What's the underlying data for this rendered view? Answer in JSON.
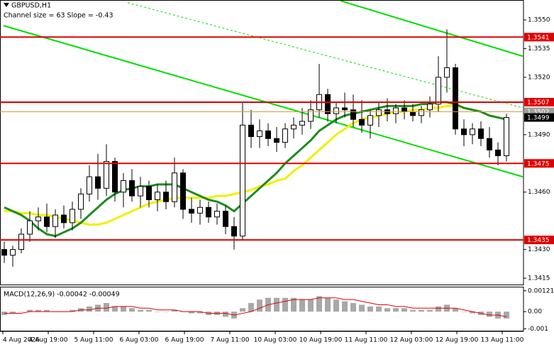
{
  "chart_data": {
    "type": "candlestick",
    "title": "GBPUSD,H1",
    "subtitle": "Channel size = 63 Slope = -0.43",
    "xlim": [
      0,
      61.5
    ],
    "xticks": [
      {
        "value": 0.33,
        "label": "4 Aug 2026"
      },
      {
        "value": 5.67,
        "label": "4 Aug 19:00"
      },
      {
        "value": 11,
        "label": "5 Aug 11:00"
      },
      {
        "value": 16.33,
        "label": "6 Aug 03:00"
      },
      {
        "value": 21.67,
        "label": "6 Aug 19:00"
      },
      {
        "value": 27,
        "label": "7 Aug 11:00"
      },
      {
        "value": 32.33,
        "label": "10 Aug 03:00"
      },
      {
        "value": 37.67,
        "label": "10 Aug 19:00"
      },
      {
        "value": 43,
        "label": "11 Aug 11:00"
      },
      {
        "value": 48.33,
        "label": "12 Aug 03:00"
      },
      {
        "value": 53.67,
        "label": "12 Aug 19:00"
      },
      {
        "value": 59,
        "label": "13 Aug 11:00"
      }
    ],
    "ylim": [
      1.34113,
      1.35604
    ],
    "yticks": [
      {
        "value": 1.355,
        "label": "1.3550"
      },
      1.3535,
      {
        "value": 1.352,
        "label": "1.3520"
      },
      {
        "value": 1.349,
        "label": "1.3490"
      },
      {
        "value": 1.346,
        "label": "1.3460"
      },
      {
        "value": 1.343,
        "label": "1.3430"
      },
      1.3415
    ],
    "bull_color": "#ffffff",
    "bear_color": "#000000",
    "ohlc": [
      [
        1.343,
        1.3434,
        1.3423,
        1.3427
      ],
      [
        1.3427,
        1.3432,
        1.3421,
        1.343
      ],
      [
        1.343,
        1.3441,
        1.3428,
        1.3438
      ],
      [
        1.3438,
        1.345,
        1.3434,
        1.3445
      ],
      [
        1.3445,
        1.3452,
        1.344,
        1.3447
      ],
      [
        1.3447,
        1.3454,
        1.3439,
        1.3442
      ],
      [
        1.3442,
        1.3451,
        1.3436,
        1.3448
      ],
      [
        1.3448,
        1.3453,
        1.3441,
        1.3444
      ],
      [
        1.3444,
        1.3455,
        1.344,
        1.3451
      ],
      [
        1.3451,
        1.3462,
        1.3446,
        1.3459
      ],
      [
        1.3459,
        1.3474,
        1.3455,
        1.3468
      ],
      [
        1.3468,
        1.348,
        1.3456,
        1.3462
      ],
      [
        1.3462,
        1.3485,
        1.3458,
        1.3476
      ],
      [
        1.3476,
        1.3478,
        1.3455,
        1.346
      ],
      [
        1.346,
        1.347,
        1.3452,
        1.3466
      ],
      [
        1.3466,
        1.3472,
        1.3455,
        1.3458
      ],
      [
        1.3458,
        1.3468,
        1.3452,
        1.3463
      ],
      [
        1.3463,
        1.3466,
        1.3452,
        1.3456
      ],
      [
        1.3456,
        1.3464,
        1.345,
        1.346
      ],
      [
        1.346,
        1.3466,
        1.3451,
        1.3455
      ],
      [
        1.3455,
        1.3478,
        1.3452,
        1.347
      ],
      [
        1.347,
        1.3472,
        1.3446,
        1.3451
      ],
      [
        1.3451,
        1.3457,
        1.3444,
        1.3449
      ],
      [
        1.3449,
        1.3456,
        1.3443,
        1.3452
      ],
      [
        1.3452,
        1.3455,
        1.3444,
        1.3447
      ],
      [
        1.3447,
        1.3454,
        1.3443,
        1.345
      ],
      [
        1.345,
        1.3453,
        1.3438,
        1.3442
      ],
      [
        1.3442,
        1.3447,
        1.343,
        1.3437
      ],
      [
        1.3437,
        1.3507,
        1.3435,
        1.3495
      ],
      [
        1.3495,
        1.3503,
        1.3483,
        1.3489
      ],
      [
        1.3489,
        1.3498,
        1.3483,
        1.3492
      ],
      [
        1.3492,
        1.3496,
        1.3484,
        1.3488
      ],
      [
        1.3488,
        1.3494,
        1.3481,
        1.3486
      ],
      [
        1.3486,
        1.3496,
        1.3483,
        1.3493
      ],
      [
        1.3493,
        1.3499,
        1.3488,
        1.3495
      ],
      [
        1.3495,
        1.3504,
        1.349,
        1.3497
      ],
      [
        1.3497,
        1.3508,
        1.3493,
        1.3503
      ],
      [
        1.3503,
        1.3527,
        1.3499,
        1.3511
      ],
      [
        1.3511,
        1.3514,
        1.3497,
        1.3501
      ],
      [
        1.3501,
        1.3507,
        1.3496,
        1.3504
      ],
      [
        1.3504,
        1.3512,
        1.3499,
        1.3503
      ],
      [
        1.3503,
        1.3511,
        1.3494,
        1.3498
      ],
      [
        1.3498,
        1.3508,
        1.3491,
        1.3495
      ],
      [
        1.3495,
        1.3503,
        1.3488,
        1.35
      ],
      [
        1.35,
        1.3507,
        1.3494,
        1.3503
      ],
      [
        1.3503,
        1.3509,
        1.3497,
        1.3501
      ],
      [
        1.3501,
        1.3506,
        1.3496,
        1.3504
      ],
      [
        1.3504,
        1.3508,
        1.3498,
        1.3502
      ],
      [
        1.3502,
        1.3506,
        1.3497,
        1.35
      ],
      [
        1.35,
        1.3505,
        1.3496,
        1.3503
      ],
      [
        1.3503,
        1.351,
        1.3499,
        1.3506
      ],
      [
        1.3506,
        1.3531,
        1.3502,
        1.352
      ],
      [
        1.352,
        1.3545,
        1.3512,
        1.3525
      ],
      [
        1.3525,
        1.3527,
        1.349,
        1.3493
      ],
      [
        1.3493,
        1.3498,
        1.3484,
        1.349
      ],
      [
        1.349,
        1.3496,
        1.3485,
        1.3493
      ],
      [
        1.3493,
        1.3497,
        1.3484,
        1.3488
      ],
      [
        1.3488,
        1.3494,
        1.3478,
        1.3482
      ],
      [
        1.3482,
        1.3486,
        1.3474,
        1.3479
      ],
      [
        1.3479,
        1.3501,
        1.3476,
        1.3499
      ]
    ],
    "moving_averages": [
      {
        "color": "#f0f000",
        "values": [
          1.345,
          1.345,
          1.3449,
          1.3449,
          1.3448,
          1.3448,
          1.3447,
          1.3446,
          1.3445,
          1.3444,
          1.3443,
          1.3443,
          1.3444,
          1.3446,
          1.3448,
          1.345,
          1.3452,
          1.3454,
          1.3455,
          1.3456,
          1.3457,
          1.3457,
          1.3457,
          1.3457,
          1.3457,
          1.3458,
          1.3458,
          1.3459,
          1.346,
          1.3461,
          1.3463,
          1.3464,
          1.3466,
          1.3467,
          1.3471,
          1.3474,
          1.3478,
          1.3482,
          1.3486,
          1.349,
          1.3493,
          1.3496,
          1.3498,
          1.3499,
          1.35,
          1.3501,
          1.3502,
          1.3502,
          1.3503,
          1.3503,
          1.3504,
          1.3504,
          1.3505,
          1.3505,
          1.3504,
          1.3503,
          1.3502,
          1.35,
          1.3499,
          1.3498
        ]
      },
      {
        "color": "#1e8c1e",
        "values": [
          1.3452,
          1.345,
          1.3448,
          1.3445,
          1.3441,
          1.3438,
          1.3437,
          1.3439,
          1.3441,
          1.3444,
          1.3448,
          1.3452,
          1.3456,
          1.3459,
          1.3461,
          1.3462,
          1.3463,
          1.3463,
          1.3464,
          1.3464,
          1.3464,
          1.3462,
          1.346,
          1.3458,
          1.3456,
          1.3455,
          1.3453,
          1.345,
          1.3454,
          1.3458,
          1.3462,
          1.3466,
          1.347,
          1.3475,
          1.3479,
          1.3483,
          1.3487,
          1.3492,
          1.3495,
          1.3498,
          1.35,
          1.3501,
          1.3502,
          1.3503,
          1.3504,
          1.3505,
          1.3505,
          1.3505,
          1.3505,
          1.3506,
          1.3506,
          1.3507,
          1.3507,
          1.3506,
          1.3504,
          1.3503,
          1.3502,
          1.35,
          1.3499,
          1.3498
        ]
      }
    ],
    "channel_lines": [
      {
        "color": "#00e000",
        "style": "solid",
        "x": [
          0.4,
          61.42
        ],
        "y": [
          1.3547,
          1.3468
        ]
      },
      {
        "color": "#00e000",
        "style": "solid",
        "x": [
          40,
          61.42
        ],
        "y": [
          1.356,
          1.3531
        ]
      },
      {
        "color": "#00e000",
        "style": "dotted",
        "x": [
          15,
          61.42
        ],
        "y": [
          1.3559,
          1.3504
        ]
      }
    ],
    "levels": [
      {
        "value": 1.3541,
        "color": "#e00000"
      },
      {
        "value": 1.3507,
        "color": "#e00000"
      },
      {
        "value": 1.3475,
        "color": "#e00000"
      },
      {
        "value": 1.3435,
        "color": "#e00000"
      }
    ],
    "price_labels": [
      {
        "value": 1.3502,
        "color": "#a0a0a0",
        "line_color": "#d49a4a"
      },
      {
        "value": 1.3499,
        "color": "#000000"
      }
    ],
    "macd": {
      "label": "MACD(12,26,9) -0.00042 -0.00049",
      "ylim": [
        -0.00115,
        0.00145
      ],
      "yticks": [
        0.00121,
        {
          "value": 0,
          "label": "0.00"
        },
        -0.001
      ],
      "histogram_color": "#a8a8a8",
      "signal_color": "#e00000",
      "histogram": [
        -0.0002,
        -0.0001,
        0.0,
        0.0001,
        0.0001,
        0.0001,
        0.0,
        0.0,
        0.0001,
        0.0002,
        0.0003,
        0.0004,
        0.0005,
        0.0003,
        0.0003,
        0.0002,
        0.0001,
        0.0001,
        0.0,
        0.0,
        0.0001,
        0.0,
        -0.0001,
        -0.0001,
        -0.0002,
        -0.0002,
        -0.0003,
        -0.0004,
        0.0002,
        0.0005,
        0.0007,
        0.0008,
        0.0008,
        0.0008,
        0.0008,
        0.0007,
        0.0007,
        0.0009,
        0.0008,
        0.0007,
        0.0006,
        0.0005,
        0.0004,
        0.0003,
        0.0003,
        0.0002,
        0.0002,
        0.0002,
        0.0001,
        0.0001,
        0.0001,
        0.0003,
        0.0004,
        0.0002,
        0.0,
        -0.0001,
        -0.0002,
        -0.0003,
        -0.0004,
        -0.0004
      ],
      "signal": [
        -0.0001,
        -0.0001,
        -0.0001,
        0.0,
        0.0,
        0.0,
        0.0,
        0.0,
        0.0,
        0.0001,
        0.0001,
        0.0002,
        0.0002,
        0.0003,
        0.0003,
        0.0003,
        0.0002,
        0.0002,
        0.0001,
        0.0001,
        0.0001,
        0.0,
        0.0,
        0.0,
        -0.0001,
        -0.0001,
        -0.0001,
        -0.0002,
        -0.0001,
        0.0,
        0.0002,
        0.0004,
        0.0005,
        0.0006,
        0.0007,
        0.0007,
        0.0007,
        0.0008,
        0.0008,
        0.0008,
        0.0007,
        0.0007,
        0.0006,
        0.0005,
        0.0004,
        0.0004,
        0.0003,
        0.0003,
        0.0002,
        0.0002,
        0.0002,
        0.0002,
        0.0002,
        0.0002,
        0.0001,
        0.0,
        -0.0001,
        -0.0002,
        -0.0002,
        -0.0003
      ]
    }
  }
}
